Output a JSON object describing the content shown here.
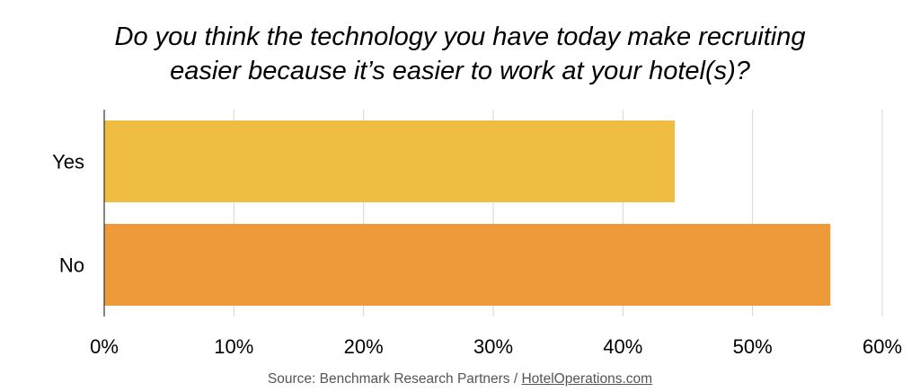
{
  "title_lines": [
    "Do you think the technology you have today make recruiting",
    "easier because it’s easier to work at your hotel(s)?"
  ],
  "source": {
    "prefix": "Source: Benchmark Research Partners / ",
    "link": "HotelOperations.com"
  },
  "chart_data": {
    "type": "bar",
    "orientation": "horizontal",
    "title": "Do you think the technology you have today make recruiting easier because it’s easier to work at your hotel(s)?",
    "categories": [
      "Yes",
      "No"
    ],
    "values": [
      44,
      56
    ],
    "unit": "%",
    "xlim": [
      0,
      60
    ],
    "ticks": [
      0,
      10,
      20,
      30,
      40,
      50,
      60
    ],
    "tick_labels": [
      "0%",
      "10%",
      "20%",
      "30%",
      "40%",
      "50%",
      "60%"
    ],
    "colors": [
      "#EFBD42",
      "#EE9A3A"
    ],
    "grid": true,
    "legend": "none"
  }
}
